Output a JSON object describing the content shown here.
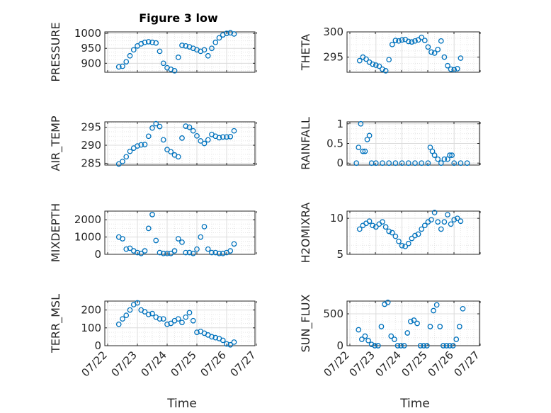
{
  "chart_data": [
    {
      "type": "scatter",
      "title": "Figure 3 low",
      "ylabel": "PRESSURE",
      "xlabel": "",
      "xlim": [
        "07/22",
        "07/27"
      ],
      "ylim": [
        870,
        1005
      ],
      "yticks": [
        900,
        950,
        1000
      ],
      "xticklabels_shown": false,
      "grid": true,
      "marker": "open-circle",
      "x": [
        "07/22 09:00",
        "07/22 12:00",
        "07/22 15:00",
        "07/22 18:00",
        "07/22 21:00",
        "07/23 00:00",
        "07/23 03:00",
        "07/23 06:00",
        "07/23 09:00",
        "07/23 12:00",
        "07/23 15:00",
        "07/23 18:00",
        "07/23 21:00",
        "07/24 00:00",
        "07/24 03:00",
        "07/24 06:00",
        "07/24 09:00",
        "07/24 12:00",
        "07/24 15:00",
        "07/24 18:00",
        "07/24 21:00",
        "07/25 00:00",
        "07/25 03:00",
        "07/25 06:00",
        "07/25 09:00",
        "07/25 12:00",
        "07/25 15:00",
        "07/25 18:00",
        "07/25 21:00",
        "07/26 00:00",
        "07/26 03:00",
        "07/26 06:00"
      ],
      "values": [
        888,
        890,
        905,
        925,
        945,
        958,
        965,
        970,
        972,
        970,
        968,
        940,
        900,
        885,
        880,
        875,
        920,
        960,
        958,
        955,
        950,
        945,
        940,
        945,
        925,
        950,
        970,
        985,
        995,
        1000,
        1002,
        998
      ]
    },
    {
      "type": "scatter",
      "title": "",
      "ylabel": "THETA",
      "xlabel": "",
      "xlim": [
        "07/22",
        "07/27"
      ],
      "ylim": [
        292,
        300
      ],
      "yticks": [
        295,
        300
      ],
      "xticklabels_shown": false,
      "grid": true,
      "marker": "open-circle",
      "x": [
        "07/22 09:00",
        "07/22 12:00",
        "07/22 15:00",
        "07/22 18:00",
        "07/22 21:00",
        "07/23 00:00",
        "07/23 03:00",
        "07/23 06:00",
        "07/23 09:00",
        "07/23 12:00",
        "07/23 15:00",
        "07/23 18:00",
        "07/23 21:00",
        "07/24 00:00",
        "07/24 03:00",
        "07/24 06:00",
        "07/24 09:00",
        "07/24 12:00",
        "07/24 15:00",
        "07/24 18:00",
        "07/24 21:00",
        "07/25 00:00",
        "07/25 03:00",
        "07/25 06:00",
        "07/25 09:00",
        "07/25 12:00",
        "07/25 15:00",
        "07/25 18:00",
        "07/25 21:00",
        "07/26 00:00",
        "07/26 03:00",
        "07/26 06:00"
      ],
      "values": [
        294.3,
        295.0,
        294.6,
        294.0,
        293.6,
        293.4,
        293.2,
        292.6,
        292.3,
        294.5,
        297.5,
        298.3,
        298.2,
        298.4,
        298.5,
        298.1,
        298.0,
        298.2,
        298.4,
        298.9,
        298.3,
        297.0,
        296.0,
        295.8,
        296.5,
        298.2,
        295.0,
        293.3,
        292.6,
        292.5,
        292.7,
        294.8
      ]
    },
    {
      "type": "scatter",
      "title": "",
      "ylabel": "AIR_TEMP",
      "xlabel": "",
      "xlim": [
        "07/22",
        "07/27"
      ],
      "ylim": [
        284.5,
        296.5
      ],
      "yticks": [
        285,
        290,
        295
      ],
      "xticklabels_shown": false,
      "grid": true,
      "marker": "open-circle",
      "x": [
        "07/22 09:00",
        "07/22 12:00",
        "07/22 15:00",
        "07/22 18:00",
        "07/22 21:00",
        "07/23 00:00",
        "07/23 03:00",
        "07/23 06:00",
        "07/23 09:00",
        "07/23 12:00",
        "07/23 15:00",
        "07/23 18:00",
        "07/23 21:00",
        "07/24 00:00",
        "07/24 03:00",
        "07/24 06:00",
        "07/24 09:00",
        "07/24 12:00",
        "07/24 15:00",
        "07/24 18:00",
        "07/24 21:00",
        "07/25 00:00",
        "07/25 03:00",
        "07/25 06:00",
        "07/25 09:00",
        "07/25 12:00",
        "07/25 15:00",
        "07/25 18:00",
        "07/25 21:00",
        "07/26 00:00",
        "07/26 03:00",
        "07/26 06:00"
      ],
      "values": [
        284.8,
        285.5,
        286.8,
        288.3,
        289.2,
        289.8,
        290.1,
        290.2,
        292.5,
        294.8,
        296.0,
        295.2,
        291.5,
        288.8,
        288.2,
        287.3,
        286.8,
        292.0,
        295.3,
        295.0,
        294.0,
        292.6,
        291.2,
        290.5,
        291.5,
        293.0,
        292.5,
        292.1,
        292.3,
        292.3,
        292.4,
        294.0
      ]
    },
    {
      "type": "scatter",
      "title": "",
      "ylabel": "RAINFALL",
      "xlabel": "",
      "xlim": [
        "07/22",
        "07/27"
      ],
      "ylim": [
        -0.05,
        1.05
      ],
      "yticks": [
        0,
        0.5,
        1
      ],
      "xticklabels_shown": false,
      "grid": true,
      "marker": "open-circle",
      "x": [
        "07/22 06:00",
        "07/22 08:00",
        "07/22 10:00",
        "07/22 12:00",
        "07/22 14:00",
        "07/22 16:00",
        "07/22 18:00",
        "07/22 20:00",
        "07/23 00:00",
        "07/23 06:00",
        "07/23 12:00",
        "07/23 18:00",
        "07/24 00:00",
        "07/24 06:00",
        "07/24 12:00",
        "07/24 18:00",
        "07/25 00:00",
        "07/25 02:00",
        "07/25 04:00",
        "07/25 06:00",
        "07/25 09:00",
        "07/25 12:00",
        "07/25 15:00",
        "07/25 18:00",
        "07/25 20:00",
        "07/25 22:00",
        "07/26 00:00",
        "07/26 06:00",
        "07/26 12:00"
      ],
      "values": [
        0,
        0.4,
        1.0,
        0.3,
        0.3,
        0.6,
        0.7,
        0,
        0,
        0,
        0,
        0,
        0,
        0,
        0,
        0,
        0,
        0.4,
        0.3,
        0.2,
        0.1,
        0,
        0.1,
        0.1,
        0.2,
        0.2,
        0,
        0,
        0
      ]
    },
    {
      "type": "scatter",
      "title": "",
      "ylabel": "MIXDEPTH",
      "xlabel": "",
      "xlim": [
        "07/22",
        "07/27"
      ],
      "ylim": [
        0,
        2500
      ],
      "yticks": [
        0,
        1000,
        2000
      ],
      "xticklabels_shown": false,
      "grid": true,
      "marker": "open-circle",
      "x": [
        "07/22 09:00",
        "07/22 12:00",
        "07/22 15:00",
        "07/22 18:00",
        "07/22 21:00",
        "07/23 00:00",
        "07/23 03:00",
        "07/23 06:00",
        "07/23 09:00",
        "07/23 12:00",
        "07/23 15:00",
        "07/23 18:00",
        "07/23 21:00",
        "07/24 00:00",
        "07/24 03:00",
        "07/24 06:00",
        "07/24 09:00",
        "07/24 12:00",
        "07/24 15:00",
        "07/24 18:00",
        "07/24 21:00",
        "07/25 00:00",
        "07/25 03:00",
        "07/25 06:00",
        "07/25 09:00",
        "07/25 12:00",
        "07/25 15:00",
        "07/25 18:00",
        "07/25 21:00",
        "07/26 00:00",
        "07/26 03:00",
        "07/26 06:00"
      ],
      "values": [
        1000,
        900,
        300,
        350,
        200,
        100,
        50,
        200,
        1500,
        2300,
        800,
        100,
        50,
        50,
        50,
        200,
        900,
        700,
        100,
        100,
        50,
        300,
        1000,
        1600,
        300,
        100,
        100,
        50,
        50,
        100,
        200,
        600
      ]
    },
    {
      "type": "scatter",
      "title": "",
      "ylabel": "H2OMIXRA",
      "xlabel": "",
      "xlim": [
        "07/22",
        "07/27"
      ],
      "ylim": [
        5,
        11
      ],
      "yticks": [
        5,
        10
      ],
      "xticklabels_shown": false,
      "grid": true,
      "marker": "open-circle",
      "x": [
        "07/22 09:00",
        "07/22 12:00",
        "07/22 15:00",
        "07/22 18:00",
        "07/22 21:00",
        "07/23 00:00",
        "07/23 03:00",
        "07/23 06:00",
        "07/23 09:00",
        "07/23 12:00",
        "07/23 15:00",
        "07/23 18:00",
        "07/23 21:00",
        "07/24 00:00",
        "07/24 03:00",
        "07/24 06:00",
        "07/24 09:00",
        "07/24 12:00",
        "07/24 15:00",
        "07/24 18:00",
        "07/24 21:00",
        "07/25 00:00",
        "07/25 03:00",
        "07/25 06:00",
        "07/25 09:00",
        "07/25 12:00",
        "07/25 15:00",
        "07/25 18:00",
        "07/25 21:00",
        "07/26 00:00",
        "07/26 03:00",
        "07/26 06:00"
      ],
      "values": [
        8.5,
        9.0,
        9.3,
        9.6,
        9.0,
        8.8,
        9.2,
        9.5,
        8.8,
        8.2,
        8.0,
        7.5,
        6.8,
        6.2,
        6.1,
        6.5,
        7.2,
        7.6,
        7.8,
        8.5,
        9.0,
        9.5,
        9.8,
        10.8,
        9.5,
        8.5,
        9.5,
        10.5,
        9.2,
        9.8,
        10.0,
        9.6
      ]
    },
    {
      "type": "scatter",
      "title": "",
      "ylabel": "TERR_MSL",
      "xlabel": "Time",
      "xlim": [
        "07/22",
        "07/27"
      ],
      "ylim": [
        0,
        250
      ],
      "yticks": [
        0,
        100,
        200
      ],
      "xticklabels": [
        "07/22",
        "07/23",
        "07/24",
        "07/25",
        "07/26",
        "07/27"
      ],
      "grid": true,
      "marker": "open-circle",
      "x": [
        "07/22 09:00",
        "07/22 12:00",
        "07/22 15:00",
        "07/22 18:00",
        "07/22 21:00",
        "07/23 00:00",
        "07/23 03:00",
        "07/23 06:00",
        "07/23 09:00",
        "07/23 12:00",
        "07/23 15:00",
        "07/23 18:00",
        "07/23 21:00",
        "07/24 00:00",
        "07/24 03:00",
        "07/24 06:00",
        "07/24 09:00",
        "07/24 12:00",
        "07/24 15:00",
        "07/24 18:00",
        "07/24 21:00",
        "07/25 00:00",
        "07/25 03:00",
        "07/25 06:00",
        "07/25 09:00",
        "07/25 12:00",
        "07/25 15:00",
        "07/25 18:00",
        "07/25 21:00",
        "07/26 00:00",
        "07/26 03:00",
        "07/26 06:00"
      ],
      "values": [
        120,
        150,
        170,
        200,
        230,
        240,
        200,
        190,
        175,
        180,
        160,
        150,
        150,
        120,
        125,
        140,
        150,
        130,
        160,
        185,
        140,
        75,
        80,
        70,
        60,
        50,
        45,
        40,
        30,
        10,
        5,
        20
      ]
    },
    {
      "type": "scatter",
      "title": "",
      "ylabel": "SUN_FLUX",
      "xlabel": "Time",
      "xlim": [
        "07/22",
        "07/27"
      ],
      "ylim": [
        0,
        700
      ],
      "yticks": [
        0,
        500
      ],
      "xticklabels": [
        "07/22",
        "07/23",
        "07/24",
        "07/25",
        "07/26",
        "07/27"
      ],
      "grid": true,
      "marker": "open-circle",
      "x": [
        "07/22 08:00",
        "07/22 11:00",
        "07/22 14:00",
        "07/22 17:00",
        "07/22 20:00",
        "07/22 23:00",
        "07/23 02:00",
        "07/23 05:00",
        "07/23 08:00",
        "07/23 11:00",
        "07/23 14:00",
        "07/23 17:00",
        "07/23 20:00",
        "07/23 23:00",
        "07/24 02:00",
        "07/24 05:00",
        "07/24 08:00",
        "07/24 11:00",
        "07/24 14:00",
        "07/24 17:00",
        "07/24 20:00",
        "07/24 23:00",
        "07/25 02:00",
        "07/25 05:00",
        "07/25 08:00",
        "07/25 11:00",
        "07/25 14:00",
        "07/25 17:00",
        "07/25 20:00",
        "07/25 23:00",
        "07/26 02:00",
        "07/26 05:00",
        "07/26 08:00"
      ],
      "values": [
        250,
        100,
        150,
        80,
        20,
        0,
        0,
        300,
        650,
        680,
        150,
        100,
        0,
        0,
        0,
        200,
        380,
        400,
        350,
        0,
        0,
        0,
        300,
        550,
        640,
        300,
        0,
        0,
        0,
        0,
        100,
        300,
        580
      ]
    }
  ]
}
